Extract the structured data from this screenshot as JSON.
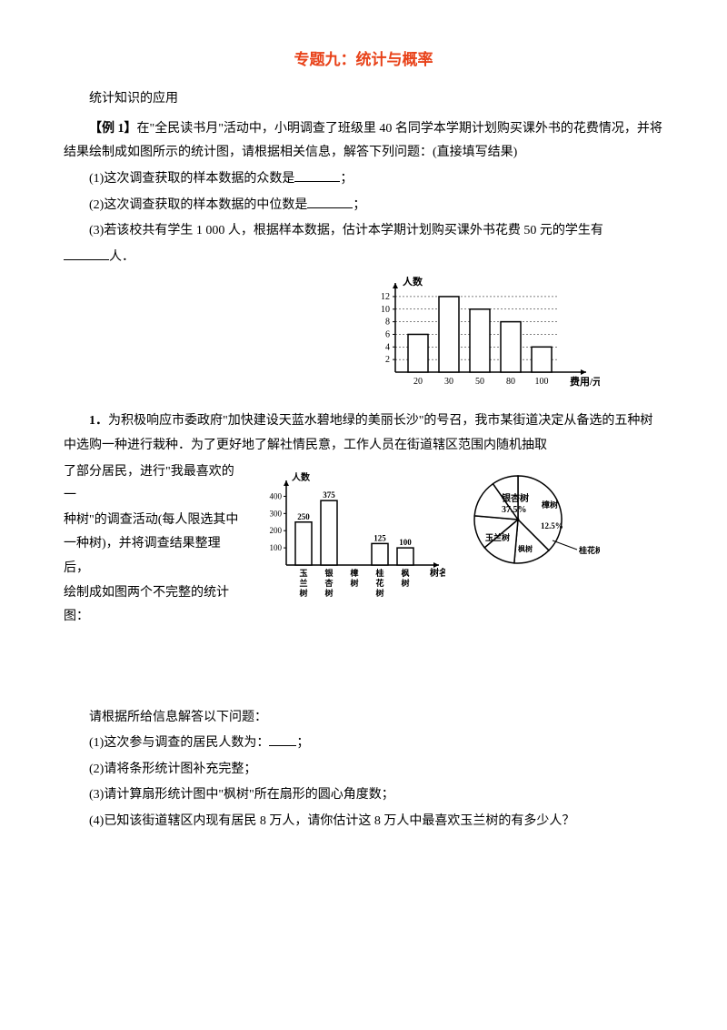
{
  "title": "专题九：统计与概率",
  "section1_label": "统计知识的应用",
  "example1_prefix": "【例 1】",
  "example1_text": "在\"全民读书月\"活动中，小明调查了班级里 40 名同学本学期计划购买课外书的花费情况，并将结果绘制成如图所示的统计图，请根据相关信息，解答下列问题：(直接填写结果)",
  "q1_1": "(1)这次调查获取的样本数据的众数是",
  "q1_1_suffix": "；",
  "q1_2": "(2)这次调查获取的样本数据的中位数是",
  "q1_2_suffix": "；",
  "q1_3a": "(3)若该校共有学生 1  000 人，根据样本数据，估计本学期计划购买课外书花费 50 元的学生有",
  "q1_3b": "人．",
  "chart1": {
    "y_label": "人数",
    "x_label": "费用/元",
    "y_ticks": [
      "2",
      "4",
      "6",
      "8",
      "10",
      "12"
    ],
    "x_ticks": [
      "20",
      "30",
      "50",
      "80",
      "100"
    ],
    "values": [
      6,
      12,
      10,
      8,
      4
    ],
    "bar_color": "#ffffff",
    "border_color": "#000000",
    "y_max": 13
  },
  "problem1_prefix": "1．",
  "problem1_text": "为积极响应市委政府\"加快建设天蓝水碧地绿的美丽长沙\"的号召，我市某街道决定从备选的五种树中选购一种进行栽种．为了更好地了解社情民意，工作人员在街道辖区范围内随机抽取了部分居民，进行\"我最喜欢的一种树\"的调查活动(每人限选其中一种树)，并将调查结果整理后，绘制成如图两个不完整的统计图：",
  "problem1_line1": "了部分居民，进行\"我最喜欢的一",
  "problem1_line2": "种树\"的调查活动(每人限选其中",
  "problem1_line3": "一种树)，并将调查结果整理后，",
  "problem1_line4": "绘制成如图两个不完整的统计图：",
  "chart2_bar": {
    "y_label": "人数",
    "x_label": "树名",
    "y_ticks": [
      "100",
      "200",
      "300",
      "400"
    ],
    "x_ticks": [
      "玉兰树",
      "银杏树",
      "樟树",
      "桂花树",
      "枫树"
    ],
    "values": [
      250,
      375,
      null,
      125,
      100
    ],
    "value_labels": [
      "250",
      "375",
      "",
      "125",
      "100"
    ],
    "bar_color": "#ffffff",
    "border_color": "#000000",
    "y_max": 450
  },
  "chart2_pie": {
    "slices": [
      {
        "label": "银杏树",
        "pct": "37.5%"
      },
      {
        "label": "樟树",
        "pct": ""
      },
      {
        "label": "12.5%",
        "pct": ""
      },
      {
        "label": "桂花树",
        "pct": ""
      },
      {
        "label": "枫树",
        "pct": ""
      },
      {
        "label": "玉兰树",
        "pct": ""
      }
    ]
  },
  "q2_intro": "请根据所给信息解答以下问题：",
  "q2_1a": "(1)这次参与调查的居民人数为：",
  "q2_1b": "；",
  "q2_2": "(2)请将条形统计图补充完整；",
  "q2_3": "(3)请计算扇形统计图中\"枫树\"所在扇形的圆心角度数；",
  "q2_4": "(4)已知该街道辖区内现有居民 8 万人，请你估计这 8 万人中最喜欢玉兰树的有多少人？"
}
